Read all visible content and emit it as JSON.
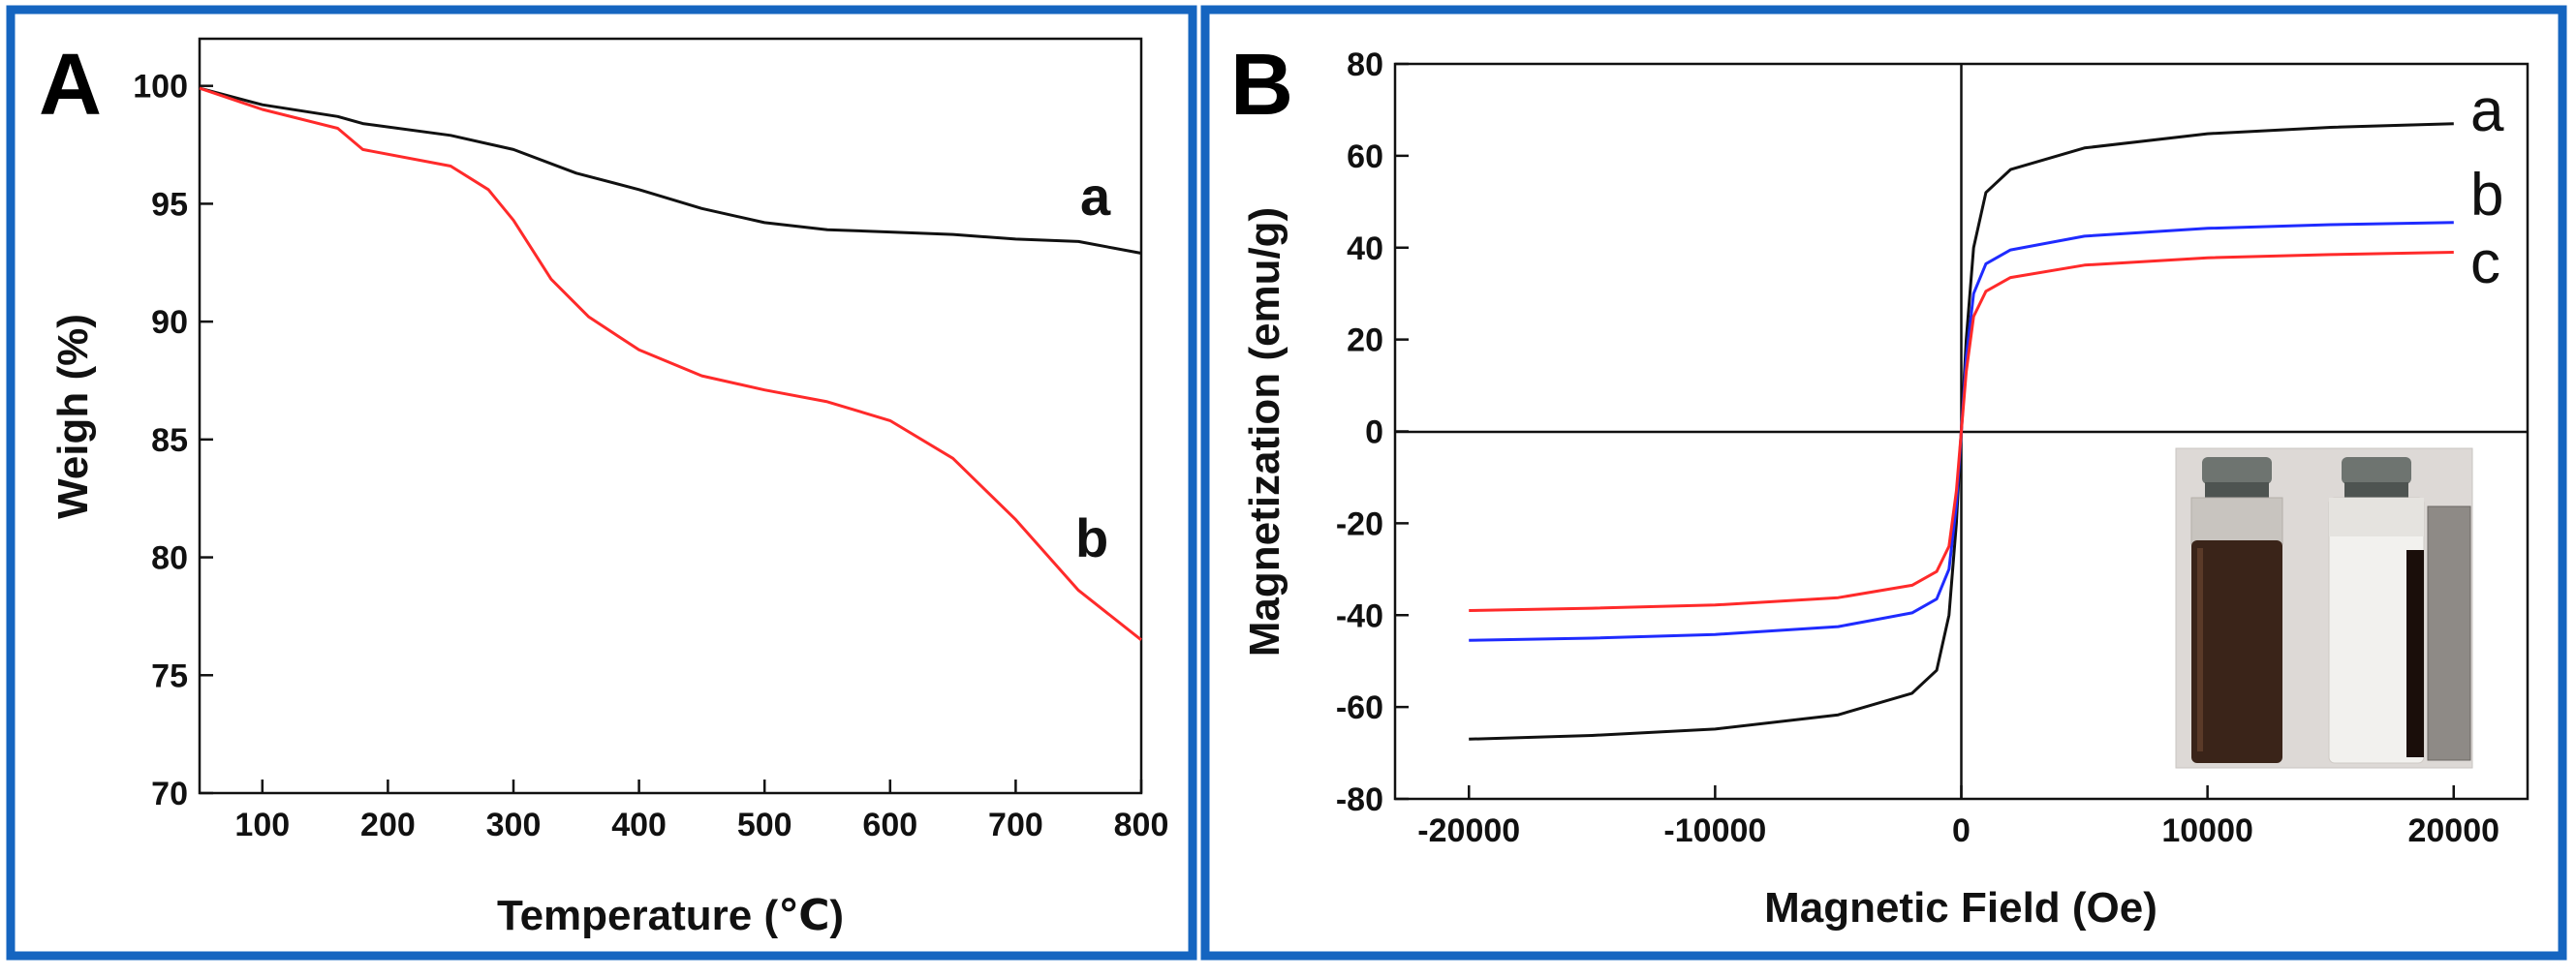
{
  "colors": {
    "border": "#1565c0",
    "series_black": "#111111",
    "series_red": "#ff2a2a",
    "series_blue": "#1f2bff"
  },
  "chart_data": [
    {
      "panel": "A",
      "type": "line",
      "title": "",
      "xlabel": "Temperature (℃)",
      "ylabel": "Weigh (%)",
      "xlim": [
        50,
        800
      ],
      "ylim": [
        70,
        102
      ],
      "xticks": [
        100,
        200,
        300,
        400,
        500,
        600,
        700,
        800
      ],
      "yticks": [
        70,
        75,
        80,
        85,
        90,
        95,
        100
      ],
      "grid": false,
      "series": [
        {
          "name": "a",
          "label": "a",
          "color": "#111111",
          "x": [
            50,
            100,
            160,
            180,
            250,
            300,
            350,
            400,
            450,
            500,
            550,
            600,
            650,
            700,
            750,
            800
          ],
          "y": [
            99.9,
            99.2,
            98.7,
            98.4,
            97.9,
            97.3,
            96.3,
            95.6,
            94.8,
            94.2,
            93.9,
            93.8,
            93.7,
            93.5,
            93.4,
            92.9
          ]
        },
        {
          "name": "b",
          "label": "b",
          "color": "#ff2a2a",
          "x": [
            50,
            100,
            160,
            180,
            250,
            280,
            300,
            330,
            360,
            400,
            450,
            500,
            550,
            600,
            650,
            700,
            750,
            800
          ],
          "y": [
            99.9,
            99.0,
            98.2,
            97.3,
            96.6,
            95.6,
            94.3,
            91.8,
            90.2,
            88.8,
            87.7,
            87.1,
            86.6,
            85.8,
            84.2,
            81.6,
            78.6,
            76.5
          ]
        }
      ]
    },
    {
      "panel": "B",
      "type": "line",
      "title": "",
      "xlabel": "Magnetic Field (Oe)",
      "ylabel": "Magnetization (emu/g)",
      "xlim": [
        -23000,
        23000
      ],
      "ylim": [
        -80,
        80
      ],
      "xticks": [
        -20000,
        -10000,
        0,
        10000,
        20000
      ],
      "yticks": [
        -80,
        -60,
        -40,
        -20,
        0,
        20,
        40,
        60,
        80
      ],
      "grid": false,
      "inset": "photo of two vials: dispersed (dark) and magnetically separated (clear) next to a magnet",
      "series": [
        {
          "name": "a",
          "label": "a",
          "color": "#111111",
          "x": [
            -20000,
            -15000,
            -10000,
            -5000,
            -2000,
            -1000,
            -500,
            -200,
            0,
            200,
            500,
            1000,
            2000,
            5000,
            10000,
            15000,
            20000
          ],
          "y": [
            -67,
            -66.2,
            -64.8,
            -61.7,
            -57,
            -52,
            -40,
            -20,
            0,
            20,
            40,
            52,
            57,
            61.7,
            64.8,
            66.2,
            67
          ]
        },
        {
          "name": "b",
          "label": "b",
          "color": "#1f2bff",
          "x": [
            -20000,
            -15000,
            -10000,
            -5000,
            -2000,
            -1000,
            -500,
            -200,
            0,
            200,
            500,
            1000,
            2000,
            5000,
            10000,
            15000,
            20000
          ],
          "y": [
            -45.5,
            -45,
            -44.2,
            -42.5,
            -39.5,
            -36.5,
            -30,
            -16,
            0,
            16,
            30,
            36.5,
            39.5,
            42.5,
            44.2,
            45,
            45.5
          ]
        },
        {
          "name": "c",
          "label": "c",
          "color": "#ff2a2a",
          "x": [
            -20000,
            -15000,
            -10000,
            -5000,
            -2000,
            -1000,
            -500,
            -200,
            0,
            200,
            500,
            1000,
            2000,
            5000,
            10000,
            15000,
            20000
          ],
          "y": [
            -39,
            -38.5,
            -37.8,
            -36.2,
            -33.5,
            -30.5,
            -25,
            -13,
            0,
            13,
            25,
            30.5,
            33.5,
            36.2,
            37.8,
            38.5,
            39
          ]
        }
      ]
    }
  ]
}
